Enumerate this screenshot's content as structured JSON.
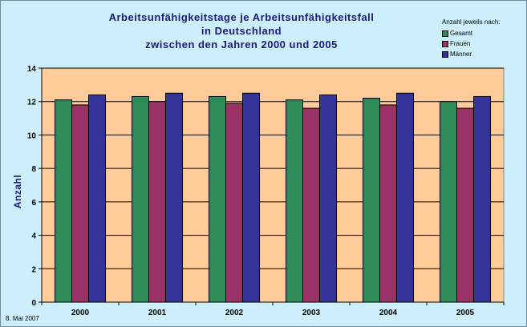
{
  "chart_data": {
    "type": "bar",
    "title_lines": [
      "Arbeitsunfähigkeitstage je Arbeitsunfähigkeitsfall",
      "in Deutschland",
      "zwischen den Jahren 2000 und 2005"
    ],
    "ylabel": "Anzahl",
    "xlabel": "",
    "categories": [
      "2000",
      "2001",
      "2002",
      "2003",
      "2004",
      "2005"
    ],
    "series": [
      {
        "name": "Gesamt",
        "color": "#2e8b57",
        "values": [
          12.1,
          12.3,
          12.3,
          12.1,
          12.2,
          12.0
        ]
      },
      {
        "name": "Frauen",
        "color": "#993366",
        "values": [
          11.8,
          12.0,
          11.9,
          11.6,
          11.8,
          11.6
        ]
      },
      {
        "name": "Männer",
        "color": "#333399",
        "values": [
          12.4,
          12.5,
          12.5,
          12.4,
          12.5,
          12.3
        ]
      }
    ],
    "ylim": [
      0,
      14
    ],
    "yticks": [
      "0",
      "2",
      "4",
      "6",
      "8",
      "10",
      "12",
      "14"
    ],
    "grid": true,
    "legend_title": "Anzahl jeweils nach:",
    "legend_position": "top-right",
    "plot_background": "#ffcc99",
    "page_background": "#cdeffb"
  },
  "footer": {
    "date": "8. Mai 2007"
  }
}
